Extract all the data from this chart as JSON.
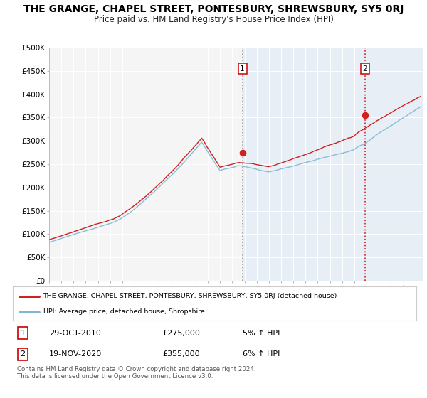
{
  "title": "THE GRANGE, CHAPEL STREET, PONTESBURY, SHREWSBURY, SY5 0RJ",
  "subtitle": "Price paid vs. HM Land Registry's House Price Index (HPI)",
  "title_fontsize": 10,
  "subtitle_fontsize": 8.5,
  "ylim": [
    0,
    500000
  ],
  "yticks": [
    0,
    50000,
    100000,
    150000,
    200000,
    250000,
    300000,
    350000,
    400000,
    450000,
    500000
  ],
  "ytick_labels": [
    "£0",
    "£50K",
    "£100K",
    "£150K",
    "£200K",
    "£250K",
    "£300K",
    "£350K",
    "£400K",
    "£450K",
    "£500K"
  ],
  "year_start": 1995,
  "year_end": 2025,
  "hpi_color": "#7eb8d4",
  "price_color": "#cc2222",
  "point1_year": 2010.83,
  "point1_value": 275000,
  "point2_year": 2020.88,
  "point2_value": 355000,
  "legend_line1": "THE GRANGE, CHAPEL STREET, PONTESBURY, SHREWSBURY, SY5 0RJ (detached house)",
  "legend_line2": "HPI: Average price, detached house, Shropshire",
  "table_row1": [
    "1",
    "29-OCT-2010",
    "£275,000",
    "5% ↑ HPI"
  ],
  "table_row2": [
    "2",
    "19-NOV-2020",
    "£355,000",
    "6% ↑ HPI"
  ],
  "footer": "Contains HM Land Registry data © Crown copyright and database right 2024.\nThis data is licensed under the Open Government Licence v3.0.",
  "background_color": "#ffffff",
  "plot_bg_color": "#f5f5f5",
  "shade_color": "#dce9f5"
}
